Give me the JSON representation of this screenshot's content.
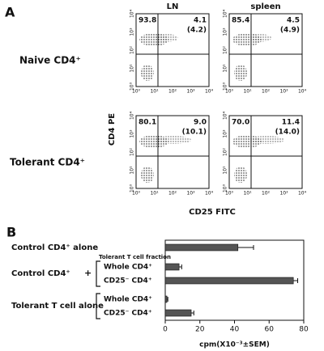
{
  "panel_a": {
    "label": "A",
    "columns": [
      "LN",
      "spleen"
    ],
    "rows": [
      {
        "label": "Naive CD4⁺",
        "plots": [
          {
            "upper_left": "93.8",
            "upper_right": "4.1",
            "upper_right_paren": "(4.2)"
          },
          {
            "upper_left": "85.4",
            "upper_right": "4.5",
            "upper_right_paren": "(4.9)"
          }
        ]
      },
      {
        "label": "Tolerant CD4⁺",
        "plots": [
          {
            "upper_left": "80.1",
            "upper_right": "9.0",
            "upper_right_paren": "(10.1)"
          },
          {
            "upper_left": "70.0",
            "upper_right": "11.4",
            "upper_right_paren": "(14.0)"
          }
        ]
      }
    ],
    "log_ticks": [
      "10⁰",
      "10¹",
      "10²",
      "10³",
      "10⁴"
    ],
    "ylabel": "CD4 PE",
    "xlabel": "CD25 FITC"
  },
  "chart_data": {
    "type": "bar",
    "orientation": "horizontal",
    "label": "B",
    "categories": [
      "Control CD4⁺ alone",
      "Whole CD4⁺",
      "CD25⁻ CD4⁺",
      "Whole CD4⁺",
      "CD25⁻ CD4⁺"
    ],
    "values": [
      42,
      8,
      74,
      1,
      15
    ],
    "errors": [
      9,
      1.5,
      2.5,
      0.5,
      1.5
    ],
    "color": "#555555",
    "groups": [
      {
        "label": "Control CD4⁺",
        "symbol": "+",
        "fraction_label": "Tolerant T cell fraction"
      },
      {
        "label": "Tolerant T cell alone"
      }
    ],
    "xlim": [
      0,
      80
    ],
    "xticks": [
      0,
      20,
      40,
      60,
      80
    ],
    "xlabel": "cpm(X10⁻³±SEM)"
  }
}
